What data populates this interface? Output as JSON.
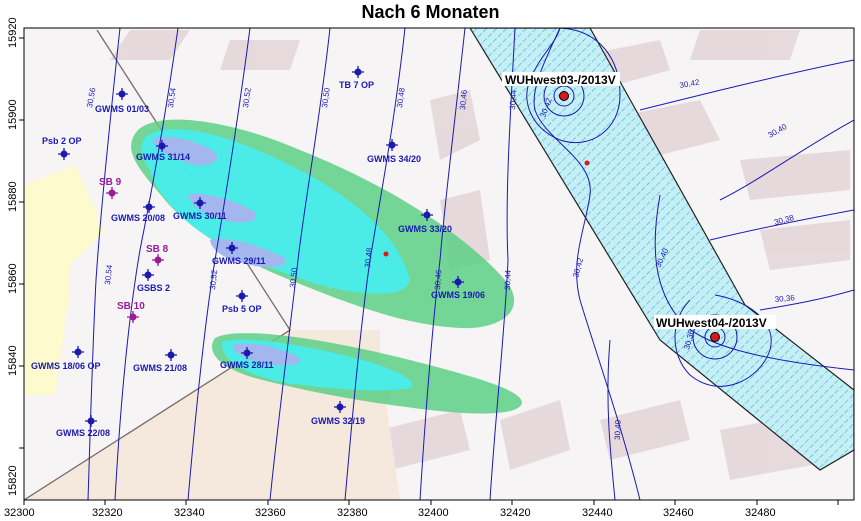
{
  "title": "Nach 6 Monaten",
  "axes": {
    "x_ticks": [
      "32300",
      "32320",
      "32340",
      "32360",
      "32380",
      "32400",
      "32420",
      "32440",
      "32460",
      "32480"
    ],
    "y_ticks": [
      "15920",
      "15900",
      "15880",
      "15860",
      "15840",
      "15820"
    ]
  },
  "contours": [
    "30,56",
    "30,54",
    "30,52",
    "30,50",
    "30,48",
    "30,46",
    "30,44",
    "30,42",
    "30,40",
    "30,38",
    "30,36",
    "30,54",
    "30,52",
    "30,50",
    "30,48",
    "30,46",
    "30,44",
    "30,42",
    "30,40",
    "30,36",
    "30,40",
    "30,42"
  ],
  "wells": [
    {
      "label": "GWMS 01/03"
    },
    {
      "label": "TB 7 OP"
    },
    {
      "label": "Psb 2 OP"
    },
    {
      "label": "GWMS 31/14"
    },
    {
      "label": "GWMS 34/20"
    },
    {
      "label": "GWMS 20/08"
    },
    {
      "label": "GWMS 30/11"
    },
    {
      "label": "GWMS 33/20"
    },
    {
      "label": "GWMS 29/11"
    },
    {
      "label": "GSBS 2"
    },
    {
      "label": "GWMS 19/06"
    },
    {
      "label": "Psb 5 OP"
    },
    {
      "label": "GWMS 18/06 OP"
    },
    {
      "label": "GWMS 21/08"
    },
    {
      "label": "GWMS 28/11"
    },
    {
      "label": "GWMS 32/19"
    },
    {
      "label": "GWMS 22/08"
    }
  ],
  "sounding_points": [
    {
      "label": "SB 9"
    },
    {
      "label": "SB 8"
    },
    {
      "label": "SB 10"
    }
  ],
  "pumping_wells": [
    {
      "label": "WUHwest03-/2013V"
    },
    {
      "label": "WUHwest04-/2013V"
    }
  ],
  "colors": {
    "contour": "#1a1ab0",
    "plume_outer": "#5ccf85",
    "plume_inner": "#47eef0",
    "plume_core": "#a3b7ee",
    "corridor": "#c5eef5",
    "pump": "#d8181a",
    "sounding": "#9a1a9a"
  }
}
